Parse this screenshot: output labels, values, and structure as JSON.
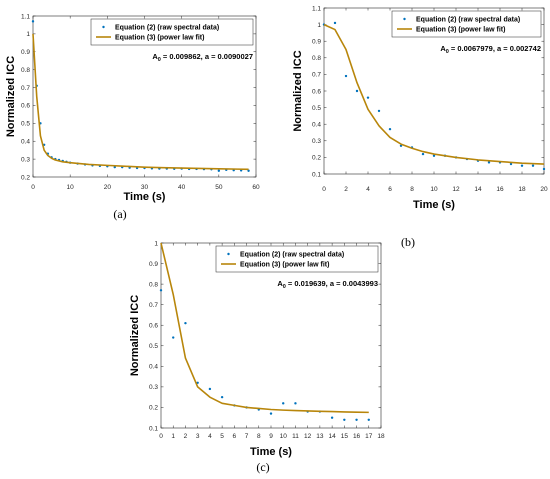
{
  "colors": {
    "raw": "#0072BD",
    "fit": "#B8860B",
    "axis": "#262626"
  },
  "chart_data": [
    {
      "type": "scatter",
      "caption": "(a)",
      "xlabel": "Time (s)",
      "ylabel": "Normalized ICC",
      "xlim": [
        0,
        60
      ],
      "ylim": [
        0.2,
        1.1
      ],
      "xticks": [
        0,
        10,
        20,
        30,
        40,
        50,
        60
      ],
      "yticks": [
        0.2,
        0.3,
        0.4,
        0.5,
        0.6,
        0.7,
        0.8,
        0.9,
        1,
        1.1
      ],
      "annotation": {
        "prefix": "A",
        "sub": "0",
        "rest": " = 0.009862, a = 0.0090027"
      },
      "legend_position": "top-right",
      "series": [
        {
          "name": "Equation (2) (raw spectral data)",
          "kind": "markers",
          "x": [
            0,
            1,
            2,
            3,
            4,
            5,
            6,
            7,
            8,
            9,
            10,
            12,
            14,
            16,
            18,
            20,
            22,
            24,
            26,
            28,
            30,
            32,
            34,
            36,
            38,
            40,
            42,
            44,
            46,
            48,
            50,
            52,
            54,
            56,
            58
          ],
          "y": [
            1.07,
            0.71,
            0.5,
            0.38,
            0.33,
            0.31,
            0.3,
            0.295,
            0.29,
            0.285,
            0.28,
            0.275,
            0.27,
            0.265,
            0.262,
            0.26,
            0.255,
            0.255,
            0.252,
            0.25,
            0.25,
            0.248,
            0.247,
            0.247,
            0.246,
            0.247,
            0.245,
            0.245,
            0.244,
            0.243,
            0.235,
            0.24,
            0.238,
            0.237,
            0.235
          ]
        },
        {
          "name": "Equation (3) (power law fit)",
          "kind": "line",
          "x": [
            0,
            1,
            2,
            3,
            4,
            5,
            6,
            8,
            10,
            15,
            20,
            25,
            30,
            35,
            40,
            45,
            50,
            55,
            58
          ],
          "y": [
            1.0,
            0.65,
            0.43,
            0.35,
            0.32,
            0.305,
            0.295,
            0.285,
            0.28,
            0.27,
            0.265,
            0.26,
            0.255,
            0.252,
            0.25,
            0.248,
            0.246,
            0.244,
            0.243
          ]
        }
      ]
    },
    {
      "type": "scatter",
      "caption": "(b)",
      "xlabel": "Time (s)",
      "ylabel": "Normalized ICC",
      "xlim": [
        0,
        20
      ],
      "ylim": [
        0.1,
        1.1
      ],
      "xticks": [
        0,
        2,
        4,
        6,
        8,
        10,
        12,
        14,
        16,
        18,
        20
      ],
      "yticks": [
        0.1,
        0.2,
        0.3,
        0.4,
        0.5,
        0.6,
        0.7,
        0.8,
        0.9,
        1,
        1.1
      ],
      "annotation": {
        "prefix": "A",
        "sub": "0",
        "rest": " = 0.0067979, a = 0.002742"
      },
      "legend_position": "top-right",
      "series": [
        {
          "name": "Equation (2) (raw spectral data)",
          "kind": "markers",
          "x": [
            0,
            1,
            2,
            3,
            4,
            5,
            6,
            7,
            8,
            9,
            10,
            11,
            12,
            13,
            14,
            15,
            16,
            17,
            18,
            19,
            20
          ],
          "y": [
            1.0,
            1.01,
            0.69,
            0.6,
            0.56,
            0.48,
            0.37,
            0.27,
            0.26,
            0.22,
            0.21,
            0.21,
            0.2,
            0.19,
            0.18,
            0.17,
            0.17,
            0.16,
            0.15,
            0.15,
            0.13
          ]
        },
        {
          "name": "Equation (3) (power law fit)",
          "kind": "line",
          "x": [
            0,
            1,
            2,
            3,
            4,
            5,
            6,
            7,
            8,
            9,
            10,
            12,
            14,
            16,
            18,
            20
          ],
          "y": [
            1.0,
            0.97,
            0.85,
            0.65,
            0.49,
            0.39,
            0.32,
            0.28,
            0.255,
            0.235,
            0.22,
            0.2,
            0.185,
            0.175,
            0.165,
            0.16
          ]
        }
      ]
    },
    {
      "type": "scatter",
      "caption": "(c)",
      "xlabel": "Time (s)",
      "ylabel": "Normalized ICC",
      "xlim": [
        0,
        18
      ],
      "ylim": [
        0.1,
        1
      ],
      "xticks": [
        0,
        1,
        2,
        3,
        4,
        5,
        6,
        7,
        8,
        9,
        10,
        11,
        12,
        13,
        14,
        15,
        16,
        17,
        18
      ],
      "yticks": [
        0.1,
        0.2,
        0.3,
        0.4,
        0.5,
        0.6,
        0.7,
        0.8,
        0.9,
        1
      ],
      "annotation": {
        "prefix": "A",
        "sub": "0",
        "rest": " = 0.019639, a = 0.0043993"
      },
      "legend_position": "top-right",
      "series": [
        {
          "name": "Equation (2) (raw spectral data)",
          "kind": "markers",
          "x": [
            0,
            1,
            2,
            3,
            4,
            5,
            6,
            7,
            8,
            9,
            10,
            11,
            12,
            13,
            14,
            15,
            16,
            17
          ],
          "y": [
            0.77,
            0.54,
            0.61,
            0.32,
            0.29,
            0.25,
            0.21,
            0.2,
            0.19,
            0.17,
            0.22,
            0.22,
            0.18,
            0.18,
            0.15,
            0.14,
            0.14,
            0.14
          ]
        },
        {
          "name": "Equation (3) (power law fit)",
          "kind": "line",
          "x": [
            0,
            1,
            2,
            3,
            4,
            5,
            6,
            7,
            8,
            9,
            10,
            11,
            12,
            13,
            14,
            15,
            16,
            17
          ],
          "y": [
            1.0,
            0.75,
            0.44,
            0.3,
            0.25,
            0.22,
            0.21,
            0.2,
            0.195,
            0.19,
            0.187,
            0.185,
            0.183,
            0.181,
            0.18,
            0.178,
            0.177,
            0.176
          ]
        }
      ]
    }
  ]
}
